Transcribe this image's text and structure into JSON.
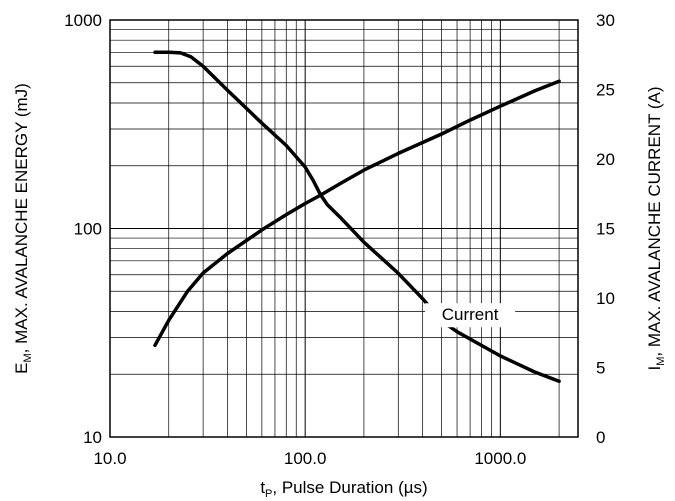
{
  "chart_data": {
    "type": "line",
    "x_scale": "log",
    "y_left_scale": "log",
    "y_right_scale": "linear",
    "xlim": [
      10,
      2500
    ],
    "ylim_left": [
      10,
      1000
    ],
    "ylim_right": [
      0,
      30
    ],
    "grid": true,
    "x_ticks": [
      {
        "value": 10,
        "label": "10.0"
      },
      {
        "value": 100,
        "label": "100.0"
      },
      {
        "value": 1000,
        "label": "1000.0"
      }
    ],
    "y_left_ticks": [
      {
        "value": 10,
        "label": "10"
      },
      {
        "value": 100,
        "label": "100"
      },
      {
        "value": 1000,
        "label": "1000"
      }
    ],
    "y_right_ticks": [
      {
        "value": 0,
        "label": "0"
      },
      {
        "value": 5,
        "label": "5"
      },
      {
        "value": 10,
        "label": "10"
      },
      {
        "value": 15,
        "label": "15"
      },
      {
        "value": 20,
        "label": "20"
      },
      {
        "value": 25,
        "label": "25"
      },
      {
        "value": 30,
        "label": "30"
      }
    ],
    "xlabel": {
      "main": "t",
      "sub": "P",
      "rest": ", Pulse Duration (µs)"
    },
    "ylabel_left": {
      "main": "E",
      "sub": "M",
      "rest": ", MAX. AVALANCHE ENERGY (mJ)"
    },
    "ylabel_right": {
      "main": "I",
      "sub": "M",
      "rest": ", MAX. AVALANCHE CURRENT (A)"
    },
    "annotations": [
      {
        "text": "Current",
        "x": 700,
        "y_right": 8.4
      }
    ],
    "series": [
      {
        "axis": "left",
        "points": [
          [
            17,
            700
          ],
          [
            20,
            700
          ],
          [
            23,
            695
          ],
          [
            26,
            665
          ],
          [
            30,
            600
          ],
          [
            40,
            460
          ],
          [
            60,
            320
          ],
          [
            80,
            250
          ],
          [
            100,
            197
          ],
          [
            110,
            170
          ],
          [
            120,
            145
          ],
          [
            130,
            130
          ],
          [
            150,
            114
          ],
          [
            200,
            86
          ],
          [
            300,
            61
          ],
          [
            400,
            46
          ],
          [
            500,
            36
          ],
          [
            600,
            32
          ],
          [
            800,
            27.5
          ],
          [
            1000,
            24.5
          ],
          [
            1500,
            20.5
          ],
          [
            2000,
            18.5
          ]
        ]
      },
      {
        "axis": "right",
        "points": [
          [
            17,
            6.6
          ],
          [
            20,
            8.4
          ],
          [
            25,
            10.5
          ],
          [
            30,
            11.8
          ],
          [
            40,
            13.2
          ],
          [
            60,
            14.9
          ],
          [
            80,
            16.0
          ],
          [
            100,
            16.8
          ],
          [
            120,
            17.4
          ],
          [
            150,
            18.2
          ],
          [
            200,
            19.2
          ],
          [
            300,
            20.4
          ],
          [
            500,
            21.8
          ],
          [
            700,
            22.8
          ],
          [
            1000,
            23.8
          ],
          [
            1500,
            24.9
          ],
          [
            2000,
            25.6
          ]
        ]
      }
    ]
  }
}
